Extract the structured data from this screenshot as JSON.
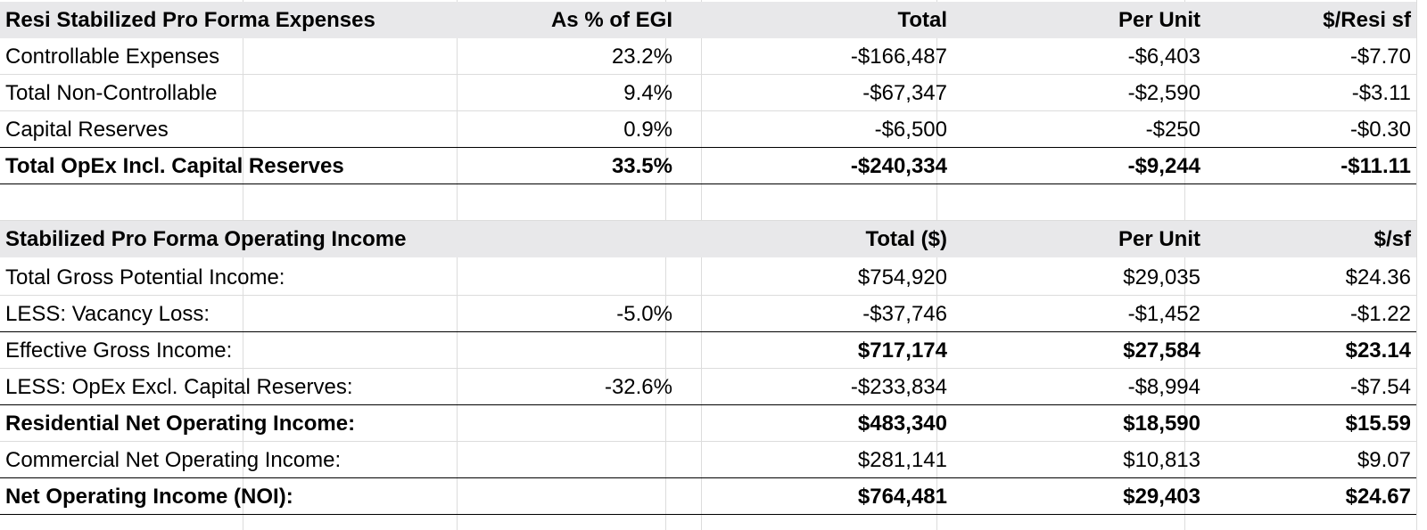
{
  "expenses": {
    "header": {
      "label": "Resi Stabilized Pro Forma Expenses",
      "pct": "As % of EGI",
      "total": "Total",
      "per_unit": "Per Unit",
      "per_sf": "$/Resi sf"
    },
    "rows": [
      {
        "label": "Controllable Expenses",
        "pct": "23.2%",
        "total": "-$166,487",
        "per_unit": "-$6,403",
        "per_sf": "-$7.70"
      },
      {
        "label": "Total Non-Controllable",
        "pct": "9.4%",
        "total": "-$67,347",
        "per_unit": "-$2,590",
        "per_sf": "-$3.11"
      },
      {
        "label": "Capital Reserves",
        "pct": "0.9%",
        "total": "-$6,500",
        "per_unit": "-$250",
        "per_sf": "-$0.30"
      },
      {
        "label": "Total OpEx Incl. Capital Reserves",
        "pct": "33.5%",
        "total": "-$240,334",
        "per_unit": "-$9,244",
        "per_sf": "-$11.11"
      }
    ]
  },
  "income": {
    "header": {
      "label": "Stabilized Pro Forma Operating Income",
      "pct": "",
      "total": "Total ($)",
      "per_unit": "Per Unit",
      "per_sf": "$/sf"
    },
    "rows": [
      {
        "label": "Total Gross Potential Income:",
        "pct": "",
        "total": "$754,920",
        "per_unit": "$29,035",
        "per_sf": "$24.36"
      },
      {
        "label": "LESS: Vacancy Loss:",
        "pct": "-5.0%",
        "total": "-$37,746",
        "per_unit": "-$1,452",
        "per_sf": "-$1.22"
      },
      {
        "label": "Effective Gross Income:",
        "pct": "",
        "total": "$717,174",
        "per_unit": "$27,584",
        "per_sf": "$23.14"
      },
      {
        "label": "LESS: OpEx Excl. Capital Reserves:",
        "pct": "-32.6%",
        "total": "-$233,834",
        "per_unit": "-$8,994",
        "per_sf": "-$7.54"
      },
      {
        "label": "Residential Net Operating Income:",
        "pct": "",
        "total": "$483,340",
        "per_unit": "$18,590",
        "per_sf": "$15.59"
      },
      {
        "label": "Commercial Net Operating Income:",
        "pct": "",
        "total": "$281,141",
        "per_unit": "$10,813",
        "per_sf": "$9.07"
      },
      {
        "label": "Net Operating Income (NOI):",
        "pct": "",
        "total": "$764,481",
        "per_unit": "$29,403",
        "per_sf": "$24.67"
      }
    ]
  }
}
